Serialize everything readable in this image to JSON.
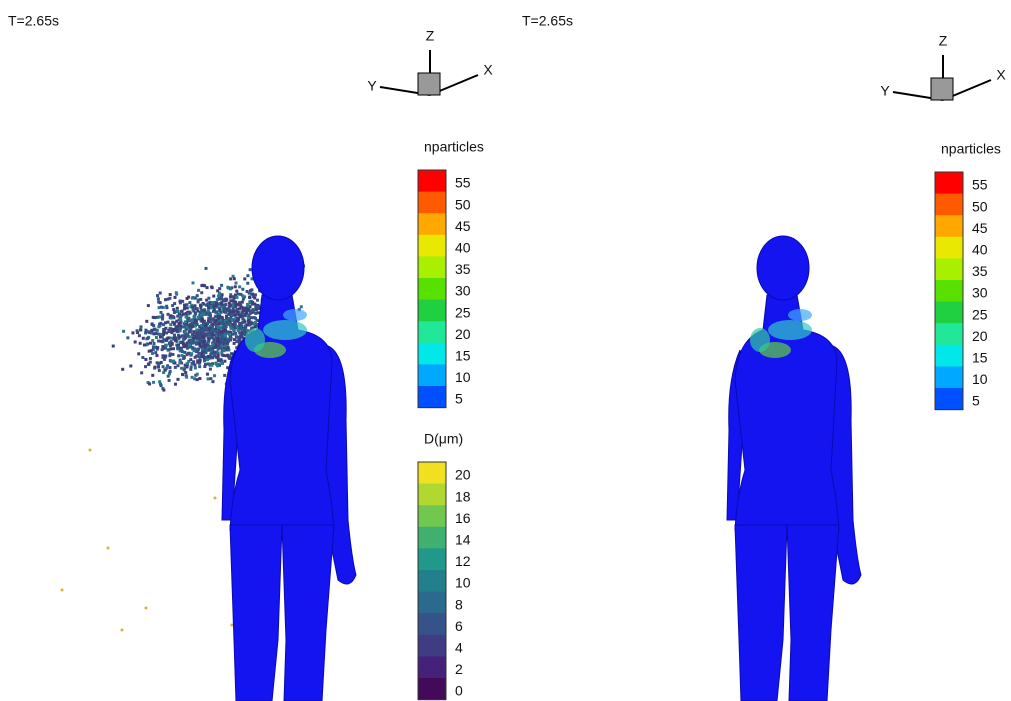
{
  "panels": [
    {
      "time_label": "T=2.65s",
      "axes": {
        "z": "Z",
        "y": "Y",
        "x": "X"
      },
      "colorbars": [
        {
          "title": "nparticles",
          "ticks": [
            55,
            50,
            45,
            40,
            35,
            30,
            25,
            20,
            15,
            10,
            5
          ]
        },
        {
          "title": "D(μm)",
          "ticks": [
            20,
            18,
            16,
            14,
            12,
            10,
            8,
            6,
            4,
            2,
            0
          ]
        }
      ]
    },
    {
      "time_label": "T=2.65s",
      "axes": {
        "z": "Z",
        "y": "Y",
        "x": "X"
      },
      "colorbars": [
        {
          "title": "nparticles",
          "ticks": [
            55,
            50,
            45,
            40,
            35,
            30,
            25,
            20,
            15,
            10,
            5
          ]
        }
      ]
    }
  ]
}
